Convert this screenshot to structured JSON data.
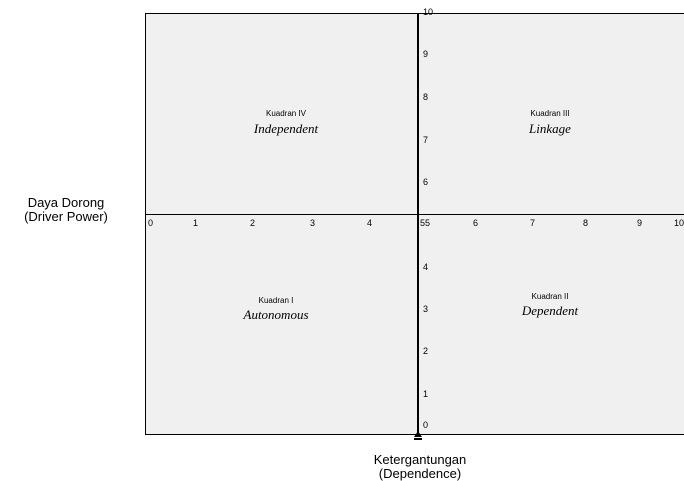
{
  "axes": {
    "y_label_line1": "Daya Dorong",
    "y_label_line2": "(Driver Power)",
    "x_label_line1": "Ketergantungan",
    "x_label_line2": "(Dependence)"
  },
  "x_ticks": [
    "0",
    "1",
    "2",
    "3",
    "4",
    "55",
    "6",
    "7",
    "8",
    "9",
    "10"
  ],
  "y_ticks_upper": [
    "10",
    "9",
    "8",
    "7",
    "6"
  ],
  "y_ticks_lower": [
    "4",
    "3",
    "2",
    "1",
    "0"
  ],
  "quadrants": {
    "q4": {
      "title": "Kuadran IV",
      "name": "Independent"
    },
    "q3": {
      "title": "Kuadran III",
      "name": "Linkage"
    },
    "q1": {
      "title": "Kuadran I",
      "name": "Autonomous"
    },
    "q2": {
      "title": "Kuadran II",
      "name": "Dependent"
    }
  },
  "colors": {
    "background": "#f0f0f0",
    "lines": "#000000"
  }
}
